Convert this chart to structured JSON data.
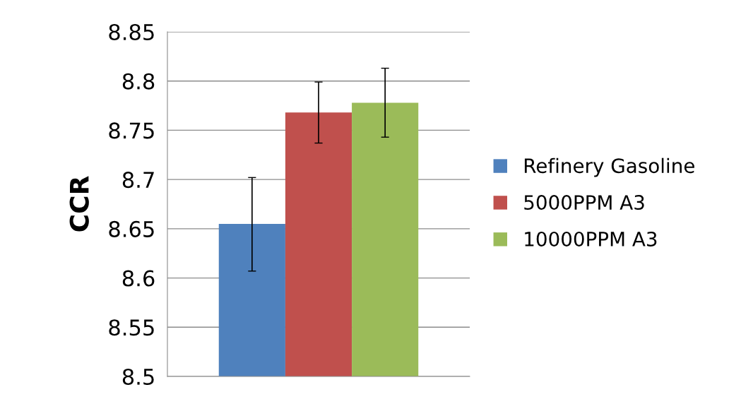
{
  "chart_data": {
    "type": "bar",
    "ylabel": "CCR",
    "categories": [
      null
    ],
    "series": [
      {
        "name": "Refinery Gasoline",
        "color": "#4f81bd",
        "values": [
          8.655
        ],
        "errors": [
          [
            8.607,
            8.702
          ]
        ]
      },
      {
        "name": "5000PPM A3",
        "color": "#c0504d",
        "values": [
          8.768
        ],
        "errors": [
          [
            8.737,
            8.799
          ]
        ]
      },
      {
        "name": "10000PPM A3",
        "color": "#9bbb59",
        "values": [
          8.778
        ],
        "errors": [
          [
            8.743,
            8.813
          ]
        ]
      }
    ],
    "ylim": [
      8.5,
      8.85
    ],
    "yticks": [
      8.5,
      8.55,
      8.6,
      8.65,
      8.7,
      8.75,
      8.8,
      8.85
    ],
    "grid": "y",
    "legend": "right"
  }
}
